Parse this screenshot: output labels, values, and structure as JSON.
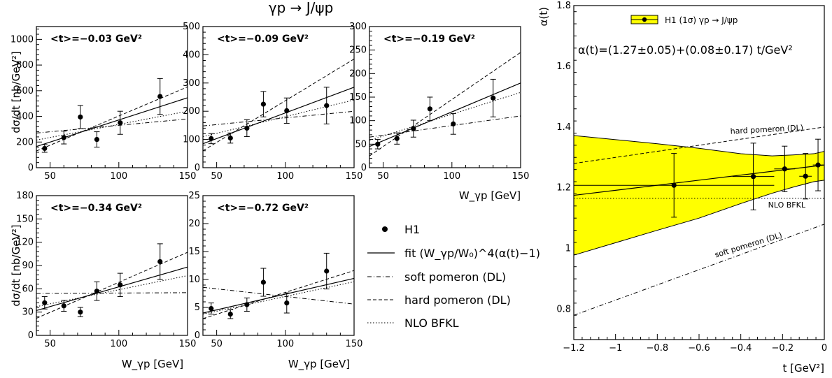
{
  "figure": {
    "top_title": "γp → J/ψp",
    "left_ylabel": "dσ/dt [nb/GeV²]",
    "left_xlabel": "W_γp [GeV]",
    "legend_left": {
      "data_label": "H1",
      "fit_label": "fit (W_γp/W₀)^4(α(t)−1)",
      "soft_label": "soft pomeron (DL)",
      "hard_label": "hard pomeron (DL)",
      "bfkl_label": "NLO BFKL"
    }
  },
  "chart_data": [
    {
      "type": "scatter",
      "panel": "t=-0.03",
      "annotation": "<t>=−0.03 GeV²",
      "xlim": [
        40,
        150
      ],
      "ylim": [
        0,
        1100
      ],
      "xticks": [
        50,
        100,
        150
      ],
      "yticks": [
        0,
        200,
        400,
        600,
        800,
        1000
      ],
      "points": [
        {
          "x": 46,
          "y": 150,
          "err": 30
        },
        {
          "x": 60,
          "y": 235,
          "err": 50
        },
        {
          "x": 72,
          "y": 395,
          "err": 90
        },
        {
          "x": 84,
          "y": 220,
          "err": 60
        },
        {
          "x": 101,
          "y": 350,
          "err": 90
        },
        {
          "x": 130,
          "y": 555,
          "err": 140
        }
      ],
      "curves": {
        "fit": [
          [
            40,
            165
          ],
          [
            150,
            545
          ]
        ],
        "soft": [
          [
            40,
            270
          ],
          [
            150,
            380
          ]
        ],
        "hard": [
          [
            40,
            130
          ],
          [
            150,
            630
          ]
        ],
        "bfkl": [
          [
            40,
            215
          ],
          [
            150,
            440
          ]
        ]
      }
    },
    {
      "type": "scatter",
      "panel": "t=-0.09",
      "annotation": "<t>=−0.09 GeV²",
      "xlim": [
        40,
        150
      ],
      "ylim": [
        0,
        500
      ],
      "xticks": [
        50,
        100,
        150
      ],
      "yticks": [
        0,
        100,
        200,
        300,
        400,
        500
      ],
      "points": [
        {
          "x": 46,
          "y": 103,
          "err": 18
        },
        {
          "x": 60,
          "y": 105,
          "err": 18
        },
        {
          "x": 72,
          "y": 140,
          "err": 30
        },
        {
          "x": 84,
          "y": 225,
          "err": 45
        },
        {
          "x": 101,
          "y": 202,
          "err": 45
        },
        {
          "x": 130,
          "y": 220,
          "err": 65
        }
      ],
      "curves": {
        "fit": [
          [
            40,
            85
          ],
          [
            150,
            285
          ]
        ],
        "soft": [
          [
            40,
            148
          ],
          [
            150,
            200
          ]
        ],
        "hard": [
          [
            40,
            60
          ],
          [
            150,
            385
          ]
        ],
        "bfkl": [
          [
            40,
            110
          ],
          [
            150,
            240
          ]
        ]
      }
    },
    {
      "type": "scatter",
      "panel": "t=-0.19",
      "annotation": "<t>=−0.19 GeV²",
      "xlim": [
        40,
        150
      ],
      "ylim": [
        0,
        300
      ],
      "xticks": [
        50,
        100,
        150
      ],
      "yticks": [
        0,
        50,
        100,
        150,
        200,
        250,
        300
      ],
      "points": [
        {
          "x": 46,
          "y": 50,
          "err": 10
        },
        {
          "x": 60,
          "y": 62,
          "err": 12
        },
        {
          "x": 72,
          "y": 83,
          "err": 18
        },
        {
          "x": 84,
          "y": 125,
          "err": 25
        },
        {
          "x": 101,
          "y": 93,
          "err": 22
        },
        {
          "x": 130,
          "y": 148,
          "err": 40
        }
      ],
      "curves": {
        "fit": [
          [
            40,
            45
          ],
          [
            150,
            180
          ]
        ],
        "soft": [
          [
            40,
            65
          ],
          [
            150,
            110
          ]
        ],
        "hard": [
          [
            40,
            25
          ],
          [
            150,
            245
          ]
        ],
        "bfkl": [
          [
            40,
            58
          ],
          [
            150,
            160
          ]
        ]
      }
    },
    {
      "type": "scatter",
      "panel": "t=-0.34",
      "annotation": "<t>=−0.34 GeV²",
      "xlim": [
        40,
        150
      ],
      "ylim": [
        0,
        180
      ],
      "xticks": [
        50,
        100,
        150
      ],
      "yticks": [
        0,
        30,
        60,
        90,
        120,
        150,
        180
      ],
      "points": [
        {
          "x": 46,
          "y": 42,
          "err": 8
        },
        {
          "x": 60,
          "y": 38,
          "err": 7
        },
        {
          "x": 72,
          "y": 30,
          "err": 6
        },
        {
          "x": 84,
          "y": 57,
          "err": 12
        },
        {
          "x": 101,
          "y": 65,
          "err": 15
        },
        {
          "x": 130,
          "y": 95,
          "err": 23
        }
      ],
      "curves": {
        "fit": [
          [
            40,
            32
          ],
          [
            150,
            88
          ]
        ],
        "soft": [
          [
            40,
            54
          ],
          [
            150,
            55
          ]
        ],
        "hard": [
          [
            40,
            22
          ],
          [
            150,
            107
          ]
        ],
        "bfkl": [
          [
            40,
            37
          ],
          [
            150,
            77
          ]
        ]
      }
    },
    {
      "type": "scatter",
      "panel": "t=-0.72",
      "annotation": "<t>=−0.72 GeV²",
      "xlim": [
        40,
        150
      ],
      "ylim": [
        0,
        25
      ],
      "xticks": [
        50,
        100,
        150
      ],
      "yticks": [
        0,
        5,
        10,
        15,
        20,
        25
      ],
      "points": [
        {
          "x": 46,
          "y": 4.8,
          "err": 1.0
        },
        {
          "x": 60,
          "y": 3.8,
          "err": 0.8
        },
        {
          "x": 72,
          "y": 5.5,
          "err": 1.2
        },
        {
          "x": 84,
          "y": 9.5,
          "err": 2.5
        },
        {
          "x": 101,
          "y": 5.8,
          "err": 1.8
        },
        {
          "x": 130,
          "y": 11.5,
          "err": 3.2
        }
      ],
      "curves": {
        "fit": [
          [
            40,
            4.0
          ],
          [
            150,
            10.2
          ]
        ],
        "soft": [
          [
            40,
            8.6
          ],
          [
            150,
            5.6
          ]
        ],
        "hard": [
          [
            40,
            3.0
          ],
          [
            150,
            11.6
          ]
        ],
        "bfkl": [
          [
            40,
            3.8
          ],
          [
            150,
            9.6
          ]
        ]
      }
    },
    {
      "type": "scatter",
      "panel": "alpha",
      "title": "α(t)=(1.27±0.05)+(0.08±0.17) t/GeV²",
      "xlabel": "t [GeV²]",
      "ylabel": "α(t)",
      "xlim": [
        -1.2,
        0
      ],
      "ylim": [
        0.7,
        1.8
      ],
      "xticks": [
        -1.2,
        -1,
        -0.8,
        -0.6,
        -0.4,
        -0.2,
        0
      ],
      "yticks": [
        0.8,
        1,
        1.2,
        1.4,
        1.6,
        1.8
      ],
      "legend": "H1 (1σ)   γp → J/ψp",
      "points": [
        {
          "x": -0.72,
          "y": 1.208,
          "xerr": 0.48,
          "yerr": 0.105
        },
        {
          "x": -0.34,
          "y": 1.237,
          "xerr": 0.1,
          "yerr": 0.11
        },
        {
          "x": -0.19,
          "y": 1.262,
          "xerr": 0.05,
          "yerr": 0.075
        },
        {
          "x": -0.09,
          "y": 1.238,
          "xerr": 0.03,
          "yerr": 0.075
        },
        {
          "x": -0.03,
          "y": 1.275,
          "xerr": 0.025,
          "yerr": 0.085
        }
      ],
      "band": {
        "upper": [
          [
            -1.2,
            1.372
          ],
          [
            -0.8,
            1.345
          ],
          [
            -0.6,
            1.33
          ],
          [
            -0.4,
            1.312
          ],
          [
            -0.25,
            1.305
          ],
          [
            -0.15,
            1.308
          ],
          [
            -0.05,
            1.312
          ],
          [
            0,
            1.32
          ]
        ],
        "lower": [
          [
            -1.2,
            0.978
          ],
          [
            -0.8,
            1.06
          ],
          [
            -0.6,
            1.1
          ],
          [
            -0.4,
            1.148
          ],
          [
            -0.25,
            1.182
          ],
          [
            -0.15,
            1.202
          ],
          [
            -0.05,
            1.22
          ],
          [
            0,
            1.225
          ]
        ]
      },
      "fit": [
        [
          -1.2,
          1.175
        ],
        [
          0,
          1.275
        ]
      ],
      "hard": {
        "label": "hard pomeron (DL)",
        "line": [
          [
            -1.2,
            1.28
          ],
          [
            0,
            1.4
          ]
        ]
      },
      "soft": {
        "label": "soft pomeron (DL)",
        "line": [
          [
            -1.2,
            0.78
          ],
          [
            0,
            1.08
          ]
        ]
      },
      "bfkl": {
        "label": "NLO BFKL",
        "line": [
          [
            -1.2,
            1.165
          ],
          [
            0,
            1.165
          ]
        ]
      }
    }
  ]
}
